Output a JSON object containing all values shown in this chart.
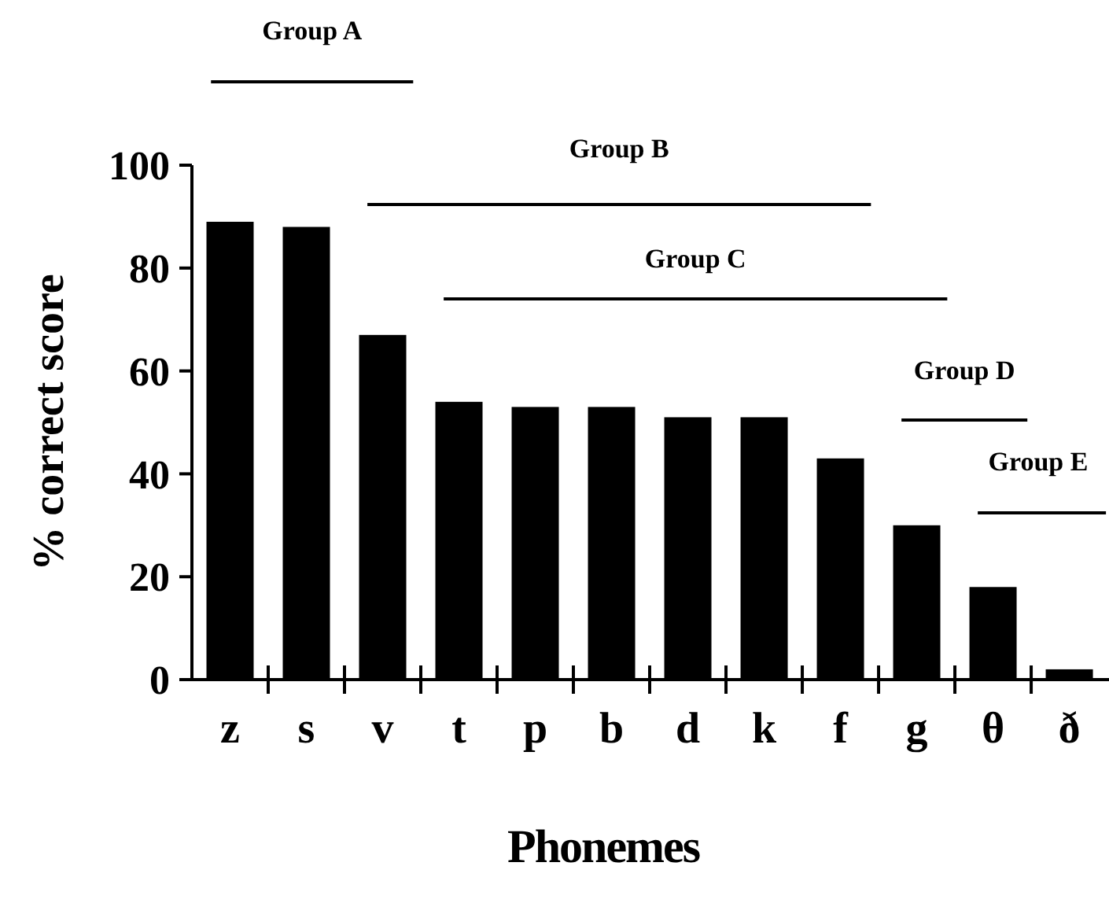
{
  "chart_data": {
    "type": "bar",
    "xlabel": "Phonemes",
    "ylabel": "% correct score",
    "categories": [
      "z",
      "s",
      "v",
      "t",
      "p",
      "b",
      "d",
      "k",
      "f",
      "g",
      "θ",
      "ð"
    ],
    "values": [
      89,
      88,
      67,
      54,
      53,
      53,
      51,
      51,
      43,
      30,
      18,
      2
    ],
    "color": "#000000",
    "ylim": [
      0,
      100
    ],
    "yticks": [
      0,
      20,
      40,
      60,
      80,
      100
    ],
    "grid": false,
    "annotations": [
      "Group A",
      "Group B",
      "Group C",
      "Group D",
      "Group E"
    ]
  }
}
